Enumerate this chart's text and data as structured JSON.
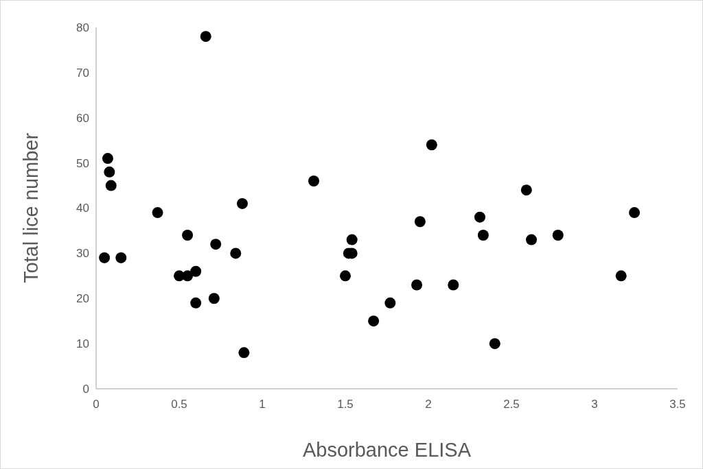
{
  "chart_data": {
    "type": "scatter",
    "xlabel": "Absorbance ELISA",
    "ylabel": "Total lice number",
    "xlim": [
      0,
      3.5
    ],
    "xticks": [
      0,
      0.5,
      1,
      1.5,
      2,
      2.5,
      3,
      3.5
    ],
    "ylim": [
      0,
      80
    ],
    "yticks": [
      0,
      10,
      20,
      30,
      40,
      50,
      60,
      70,
      80
    ],
    "grid": false,
    "marker": "circle",
    "series": [
      {
        "color": "#000000",
        "x": [
          0.07,
          0.08,
          0.09,
          0.05,
          0.15,
          0.37,
          0.5,
          0.55,
          0.55,
          0.6,
          0.6,
          0.66,
          0.71,
          0.72,
          0.84,
          0.88,
          0.89,
          1.31,
          1.5,
          1.52,
          1.54,
          1.54,
          1.67,
          1.77,
          1.93,
          1.95,
          2.02,
          2.15,
          2.31,
          2.33,
          2.4,
          2.59,
          2.62,
          2.78,
          3.16,
          3.24
        ],
        "values": [
          51,
          48,
          45,
          29,
          29,
          39,
          25,
          34,
          25,
          26,
          19,
          78,
          20,
          32,
          30,
          41,
          8,
          46,
          25,
          30,
          30,
          33,
          15,
          19,
          23,
          37,
          54,
          23,
          38,
          34,
          10,
          44,
          33,
          34,
          25,
          39
        ]
      }
    ]
  }
}
